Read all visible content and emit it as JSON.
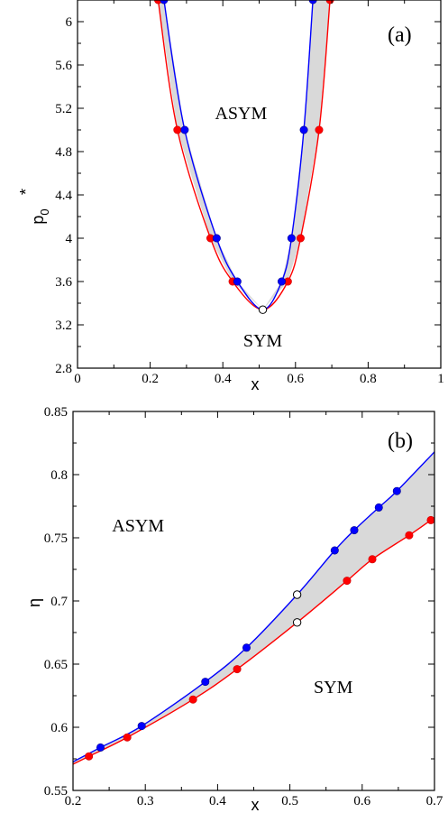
{
  "chart_data": [
    {
      "type": "line",
      "panel_label": "(a)",
      "xlabel": "x",
      "ylabel": "p",
      "ylabel_sub": "0",
      "ylabel_sup": "*",
      "xlim": [
        0,
        1
      ],
      "ylim": [
        2.8,
        6.2
      ],
      "xticks": [
        0,
        0.2,
        0.4,
        0.6,
        0.8,
        1
      ],
      "xtick_labels": [
        "0",
        "0.2",
        "0.4",
        "0.6",
        "0.8",
        "1"
      ],
      "yticks": [
        2.8,
        3.2,
        3.6,
        4.0,
        4.4,
        4.8,
        5.2,
        5.6,
        6.0
      ],
      "ytick_labels": [
        "2.8",
        "3.2",
        "3.6",
        "4",
        "4.4",
        "4.8",
        "5.2",
        "5.6",
        "6"
      ],
      "region_labels": [
        {
          "text": "ASYM",
          "x": 0.45,
          "y": 5.1
        },
        {
          "text": "SYM",
          "x": 0.51,
          "y": 3.0
        }
      ],
      "critical_point": {
        "x": 0.51,
        "y": 3.34
      },
      "series": [
        {
          "color": "#ff0000",
          "left_points": [
            [
              0.222,
              6.2
            ],
            [
              0.275,
              5.0
            ],
            [
              0.366,
              4.0
            ],
            [
              0.427,
              3.6
            ]
          ],
          "right_points": [
            [
              0.579,
              3.6
            ],
            [
              0.614,
              4.0
            ],
            [
              0.665,
              5.0
            ],
            [
              0.695,
              6.2
            ]
          ]
        },
        {
          "color": "#0000ff",
          "left_points": [
            [
              0.238,
              6.2
            ],
            [
              0.295,
              5.0
            ],
            [
              0.383,
              4.0
            ],
            [
              0.44,
              3.6
            ]
          ],
          "right_points": [
            [
              0.562,
              3.6
            ],
            [
              0.589,
              4.0
            ],
            [
              0.623,
              5.0
            ],
            [
              0.648,
              6.2
            ]
          ]
        }
      ]
    },
    {
      "type": "line",
      "panel_label": "(b)",
      "xlabel": "x",
      "ylabel": "η",
      "xlim": [
        0.2,
        0.7
      ],
      "ylim": [
        0.55,
        0.85
      ],
      "xticks": [
        0.2,
        0.3,
        0.4,
        0.5,
        0.6,
        0.7
      ],
      "xtick_labels": [
        "0.2",
        "0.3",
        "0.4",
        "0.5",
        "0.6",
        "0.7"
      ],
      "yticks": [
        0.55,
        0.6,
        0.65,
        0.7,
        0.75,
        0.8,
        0.85
      ],
      "ytick_labels": [
        "0.55",
        "0.6",
        "0.65",
        "0.7",
        "0.75",
        "0.8",
        "0.85"
      ],
      "region_labels": [
        {
          "text": "ASYM",
          "x": 0.29,
          "y": 0.755
        },
        {
          "text": "SYM",
          "x": 0.56,
          "y": 0.627
        }
      ],
      "series": [
        {
          "color": "#0000ff",
          "points": [
            [
              0.238,
              0.584
            ],
            [
              0.295,
              0.601
            ],
            [
              0.383,
              0.636
            ],
            [
              0.44,
              0.663
            ],
            [
              0.51,
              0.705
            ],
            [
              0.562,
              0.74
            ],
            [
              0.589,
              0.756
            ],
            [
              0.623,
              0.774
            ],
            [
              0.648,
              0.787
            ]
          ],
          "open_index": 4,
          "line_end": [
            0.7,
            0.818
          ]
        },
        {
          "color": "#ff0000",
          "points": [
            [
              0.222,
              0.577
            ],
            [
              0.275,
              0.592
            ],
            [
              0.366,
              0.622
            ],
            [
              0.427,
              0.646
            ],
            [
              0.51,
              0.683
            ],
            [
              0.579,
              0.716
            ],
            [
              0.614,
              0.733
            ],
            [
              0.665,
              0.752
            ],
            [
              0.695,
              0.764
            ]
          ],
          "open_index": 4,
          "line_end": [
            0.7,
            0.766
          ]
        }
      ]
    }
  ]
}
